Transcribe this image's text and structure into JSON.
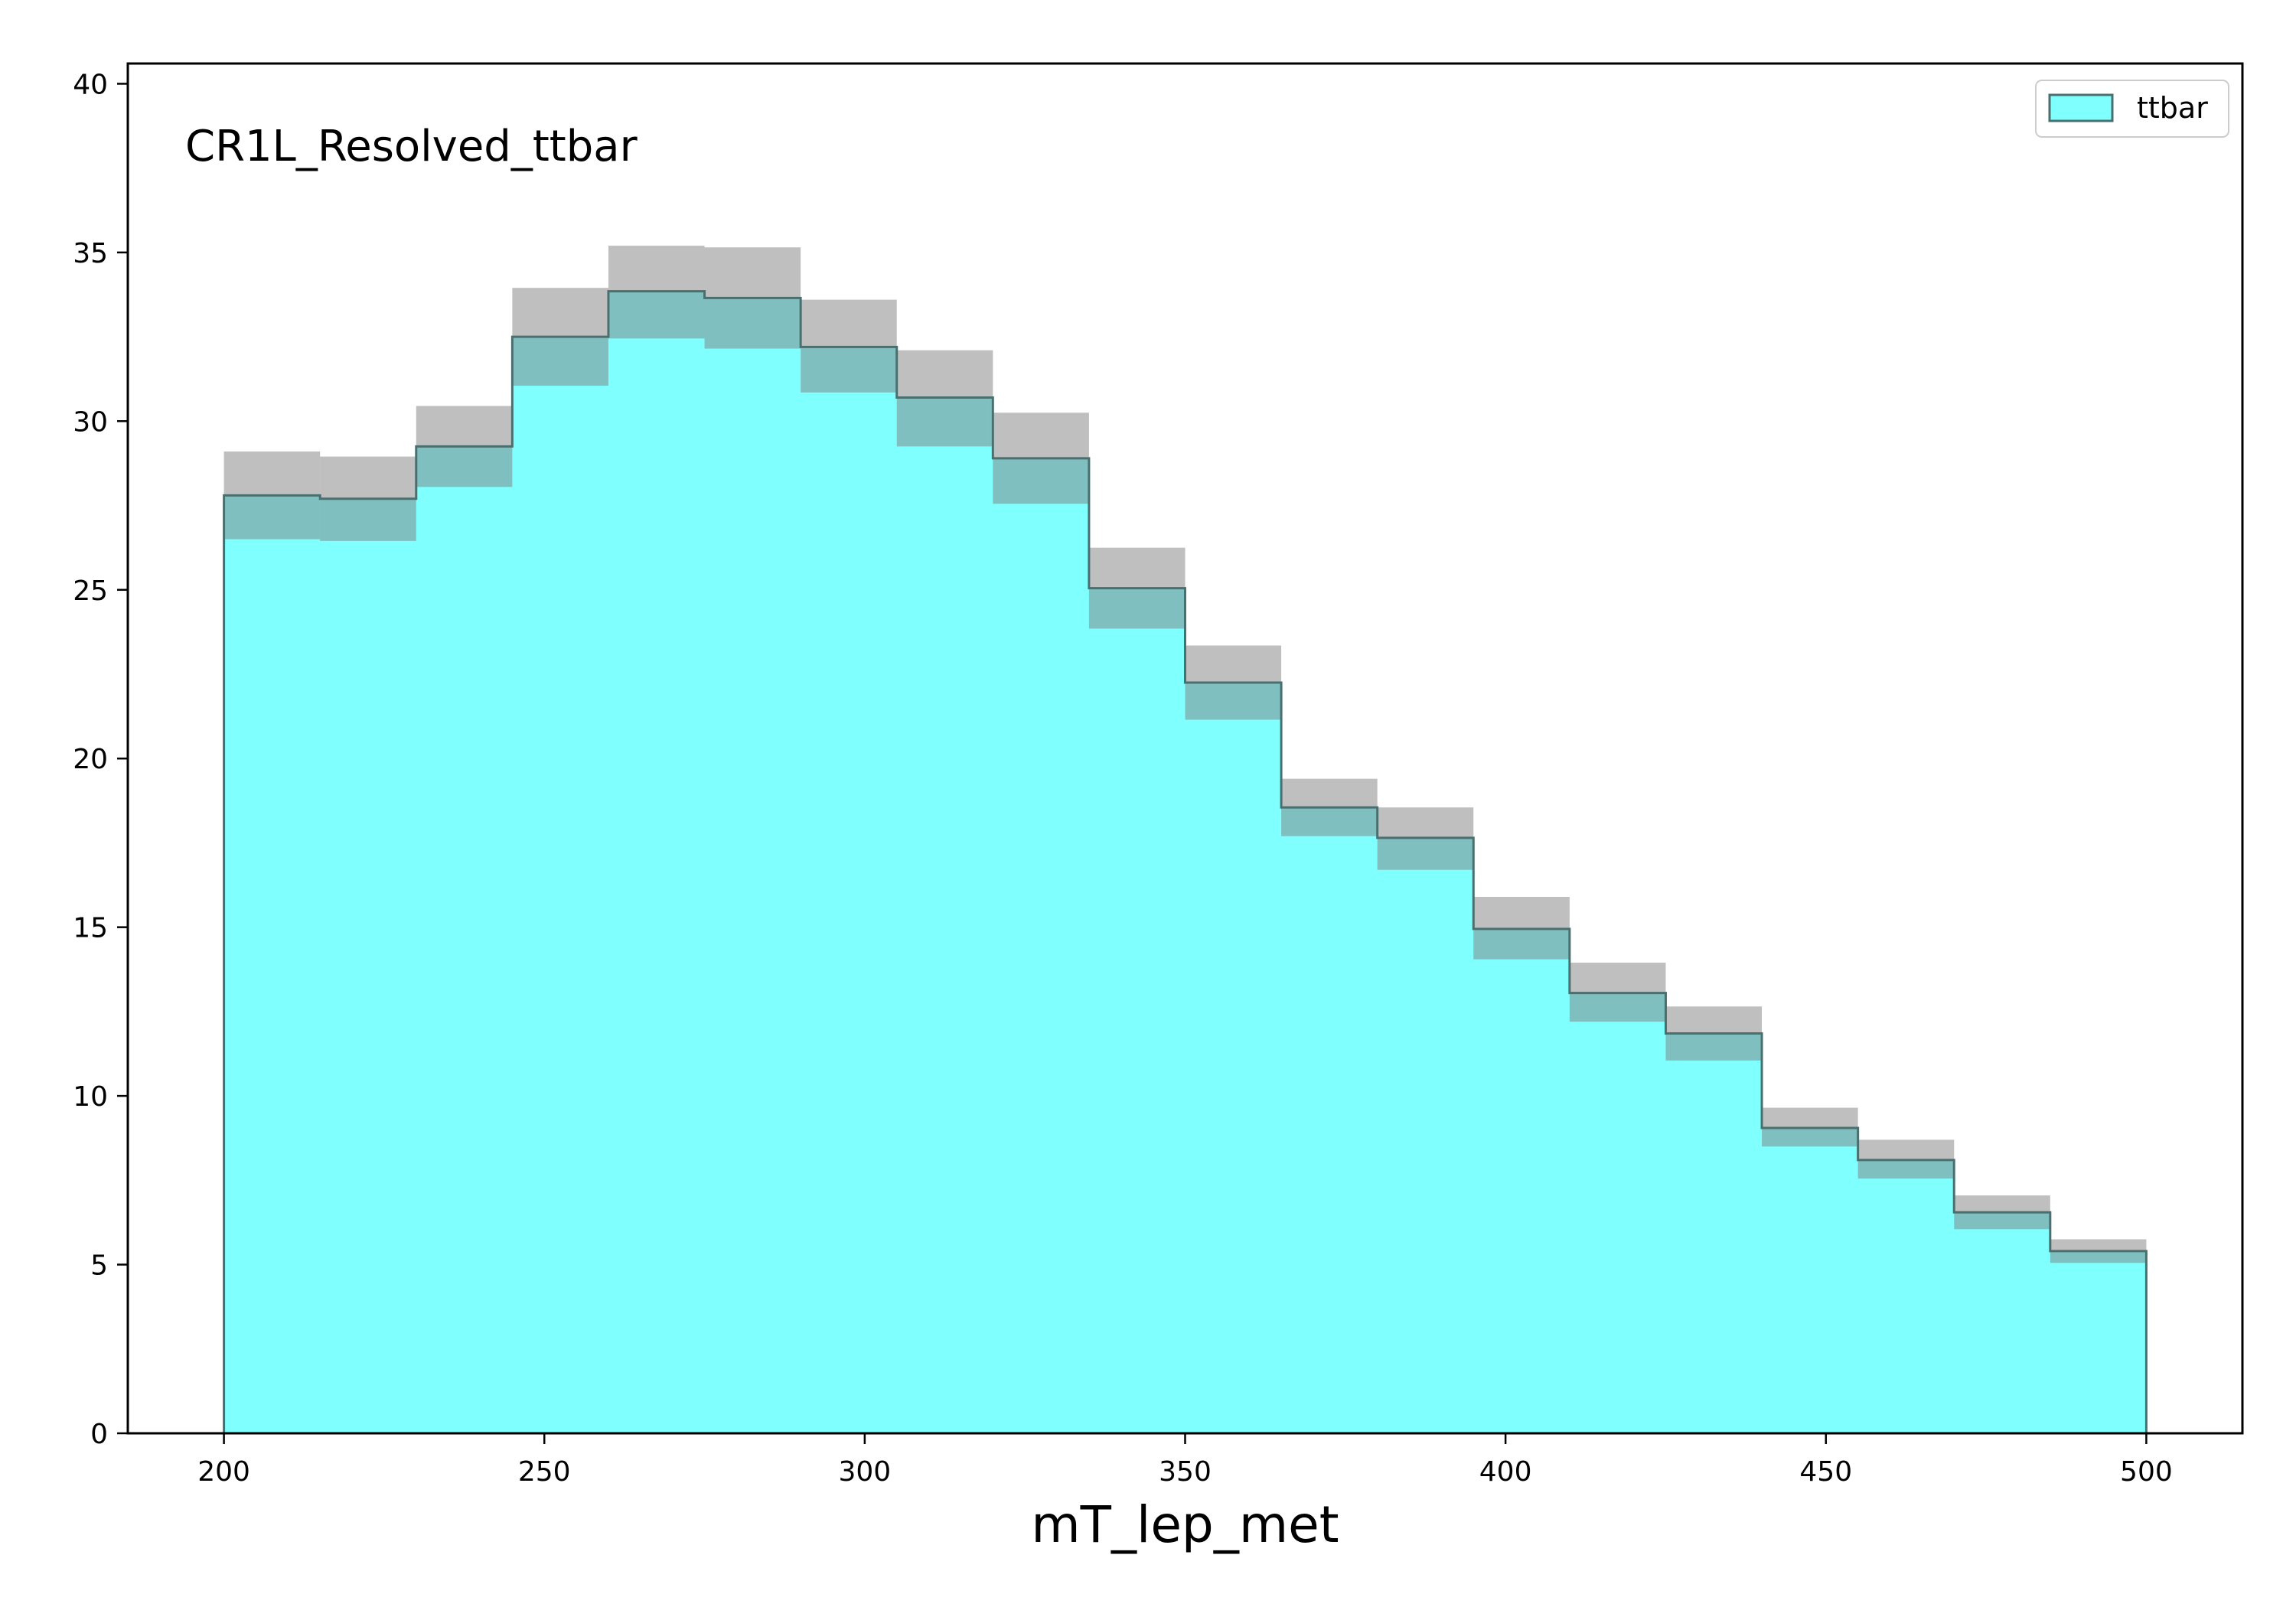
{
  "chart_data": {
    "type": "histogram",
    "annotation": "CR1L_Resolved_ttbar",
    "xlabel": "mT_lep_met",
    "ylabel": "",
    "xlim": [
      185,
      515
    ],
    "ylim": [
      0,
      40.6
    ],
    "xticks": [
      200,
      250,
      300,
      350,
      400,
      450,
      500
    ],
    "yticks": [
      0,
      5,
      10,
      15,
      20,
      25,
      30,
      35,
      40
    ],
    "bin_edges": [
      200,
      215,
      230,
      245,
      260,
      275,
      290,
      305,
      320,
      335,
      350,
      365,
      380,
      395,
      410,
      425,
      440,
      455,
      470,
      485,
      500
    ],
    "series": [
      {
        "name": "ttbar",
        "values": [
          27.8,
          27.7,
          29.25,
          32.5,
          33.85,
          33.65,
          32.2,
          30.7,
          28.9,
          25.05,
          22.25,
          18.55,
          17.65,
          14.95,
          13.05,
          11.85,
          9.05,
          8.1,
          6.55,
          5.4
        ],
        "uncertainty_low": [
          26.5,
          26.45,
          28.05,
          31.05,
          32.45,
          32.15,
          30.85,
          29.25,
          27.55,
          23.85,
          21.15,
          17.7,
          16.7,
          14.05,
          12.2,
          11.05,
          8.5,
          7.55,
          6.05,
          5.05
        ],
        "uncertainty_high": [
          29.1,
          28.95,
          30.45,
          33.95,
          35.2,
          35.15,
          33.6,
          32.1,
          30.25,
          26.25,
          23.35,
          19.4,
          18.55,
          15.9,
          13.95,
          12.65,
          9.65,
          8.7,
          7.05,
          5.75
        ]
      }
    ],
    "colors": {
      "fill": "#80ffff",
      "edge": "#4a6f6f",
      "band": "#808080"
    },
    "legend": {
      "position": "top-right",
      "entries": [
        "ttbar"
      ]
    },
    "grid": false
  }
}
